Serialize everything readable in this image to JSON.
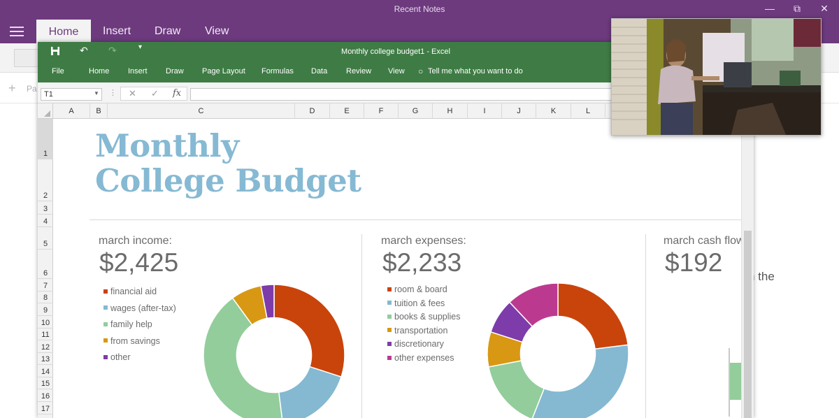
{
  "onenote": {
    "window_title": "Recent Notes",
    "tabs": [
      "Home",
      "Insert",
      "Draw",
      "View"
    ],
    "add_page_label": "Pa",
    "page_text_fragment": "n the"
  },
  "excel": {
    "doc_title": "Monthly college budget1  -  Excel",
    "menu": [
      "File",
      "Home",
      "Insert",
      "Draw",
      "Page Layout",
      "Formulas",
      "Data",
      "Review",
      "View"
    ],
    "tell_me": "Tell me what you want to do",
    "name_box": "T1",
    "fx_label": "fx",
    "columns": [
      "A",
      "B",
      "C",
      "D",
      "E",
      "F",
      "G",
      "H",
      "I",
      "J",
      "K",
      "L"
    ],
    "rows": [
      "1",
      "2",
      "3",
      "4",
      "5",
      "6",
      "7",
      "8",
      "9",
      "10",
      "11",
      "12",
      "13",
      "14",
      "15",
      "16",
      "17"
    ]
  },
  "budget": {
    "title_line1": "Monthly",
    "title_line2": "College Budget",
    "income": {
      "label": "march income:",
      "amount": "$2,425",
      "legend": [
        "financial aid",
        "wages (after-tax)",
        "family help",
        "from savings",
        "other"
      ]
    },
    "expenses": {
      "label": "march expenses:",
      "amount": "$2,233",
      "legend": [
        "room & board",
        "tuition & fees",
        "books & supplies",
        "transportation",
        "discretionary",
        "other expenses"
      ]
    },
    "cashflow": {
      "label": "march cash flow",
      "amount": "$192"
    }
  },
  "colors": {
    "onenote_purple": "#6d3a7e",
    "excel_green": "#3f7c45",
    "title_blue": "#86b9d3",
    "orange": "#c9440b",
    "light_blue": "#84b9d1",
    "green": "#93cd9c",
    "gold": "#d89813",
    "purple": "#7d3ca9",
    "magenta": "#bb3a8f"
  },
  "chart_data": [
    {
      "type": "pie",
      "title": "",
      "categories": [
        "financial aid",
        "wages (after-tax)",
        "family help",
        "from savings",
        "other"
      ],
      "values": [
        30,
        18,
        42,
        7,
        3
      ],
      "colors": [
        "#c9440b",
        "#84b9d1",
        "#93cd9c",
        "#d89813",
        "#7d3ca9"
      ]
    },
    {
      "type": "pie",
      "title": "",
      "categories": [
        "room & board",
        "tuition & fees",
        "books & supplies",
        "transportation",
        "discretionary",
        "other expenses"
      ],
      "values": [
        23,
        33,
        16,
        8,
        8,
        12
      ],
      "colors": [
        "#c9440b",
        "#84b9d1",
        "#93cd9c",
        "#d89813",
        "#7d3ca9",
        "#bb3a8f"
      ]
    }
  ]
}
